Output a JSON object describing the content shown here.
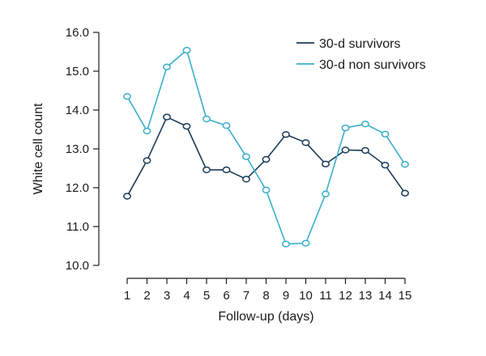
{
  "chart_data": {
    "type": "line",
    "title": "",
    "xlabel": "Follow-up (days)",
    "ylabel": "White cell count",
    "x": [
      1,
      2,
      3,
      4,
      5,
      6,
      7,
      8,
      9,
      10,
      11,
      12,
      13,
      14,
      15
    ],
    "x_tick_labels": [
      "1",
      "2",
      "3",
      "4",
      "5",
      "6",
      "7",
      "8",
      "9",
      "10",
      "11",
      "12",
      "13",
      "14",
      "15"
    ],
    "xlim": [
      0,
      16
    ],
    "ylim": [
      9.7,
      16.0
    ],
    "y_ticks": [
      10.0,
      11.0,
      12.0,
      13.0,
      14.0,
      15.0,
      16.0
    ],
    "y_tick_labels": [
      "10.0",
      "11.0",
      "12.0",
      "13.0",
      "14.0",
      "15.0",
      "16.0"
    ],
    "grid": false,
    "legend_position": "top-right",
    "series": [
      {
        "name": "30-d survivors",
        "color": "#1b3a57",
        "values": [
          11.78,
          12.7,
          13.82,
          13.58,
          12.46,
          12.46,
          12.22,
          12.73,
          13.37,
          13.16,
          12.61,
          12.97,
          12.96,
          12.58,
          11.86
        ]
      },
      {
        "name": "30-d non survivors",
        "color": "#3aaecc",
        "values": [
          14.35,
          13.46,
          15.11,
          15.54,
          13.77,
          13.6,
          12.8,
          11.94,
          10.55,
          10.57,
          11.84,
          13.54,
          13.64,
          13.38,
          12.6
        ]
      }
    ]
  }
}
